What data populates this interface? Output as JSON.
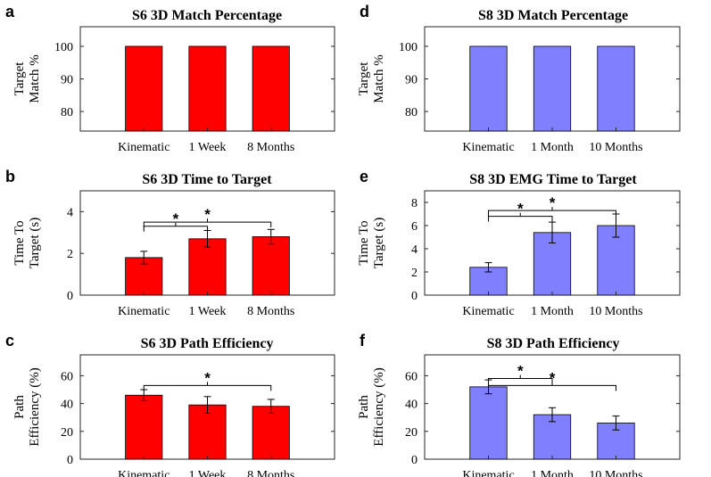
{
  "figure_letters": [
    "a",
    "b",
    "c",
    "d",
    "e",
    "f"
  ],
  "colors": {
    "red_bar": "#ff0000",
    "blue_bar": "#8080ff",
    "axis": "#262626"
  },
  "chart_data": [
    {
      "letter": "a",
      "type": "bar",
      "title": "S6 3D Match Percentage",
      "ylabel": [
        "Target",
        "Match %"
      ],
      "xlabel": "",
      "categories": [
        "Kinematic",
        "1 Week",
        "8 Months"
      ],
      "values": [
        100,
        100,
        100
      ],
      "errors": [
        0,
        0,
        0
      ],
      "ylim": [
        74,
        106
      ],
      "yticks": [
        80,
        90,
        100
      ],
      "color": "#ff0000",
      "significance": []
    },
    {
      "letter": "b",
      "type": "bar",
      "title": "S6 3D Time to Target",
      "ylabel": [
        "Time To",
        "Target (s)"
      ],
      "xlabel": "",
      "categories": [
        "Kinematic",
        "1 Week",
        "8 Months"
      ],
      "values": [
        1.8,
        2.7,
        2.8
      ],
      "errors": [
        0.3,
        0.4,
        0.35
      ],
      "ylim": [
        0,
        5
      ],
      "yticks": [
        0,
        2,
        4
      ],
      "color": "#ff0000",
      "significance": [
        {
          "from": 0,
          "to": 1,
          "level": 3.3,
          "label": "*"
        },
        {
          "from": 0,
          "to": 2,
          "level": 3.5,
          "label": "*"
        }
      ]
    },
    {
      "letter": "c",
      "type": "bar",
      "title": "S6 3D Path Efficiency",
      "ylabel": [
        "Path",
        "Efficiency (%)"
      ],
      "xlabel": "",
      "categories": [
        "Kinematic",
        "1 Week",
        "8 Months"
      ],
      "values": [
        46,
        39,
        38
      ],
      "errors": [
        4,
        6,
        5
      ],
      "ylim": [
        0,
        75
      ],
      "yticks": [
        0,
        20,
        40,
        60
      ],
      "color": "#ff0000",
      "significance": [
        {
          "from": 0,
          "to": 2,
          "level": 53,
          "label": "*"
        }
      ]
    },
    {
      "letter": "d",
      "type": "bar",
      "title": "S8 3D Match Percentage",
      "ylabel": [
        "Target",
        "Match %"
      ],
      "xlabel": "",
      "categories": [
        "Kinematic",
        "1 Month",
        "10 Months"
      ],
      "values": [
        100,
        100,
        100
      ],
      "errors": [
        0,
        0,
        0
      ],
      "ylim": [
        74,
        106
      ],
      "yticks": [
        80,
        90,
        100
      ],
      "color": "#8080ff",
      "significance": []
    },
    {
      "letter": "e",
      "type": "bar",
      "title": "S8 3D EMG Time to Target",
      "ylabel": [
        "Time To",
        "Target (s)"
      ],
      "xlabel": "",
      "categories": [
        "Kinematic",
        "1 Month",
        "10 Months"
      ],
      "values": [
        2.4,
        5.4,
        6.0
      ],
      "errors": [
        0.4,
        0.9,
        1.0
      ],
      "ylim": [
        0,
        9
      ],
      "yticks": [
        0,
        2,
        4,
        6,
        8
      ],
      "color": "#8080ff",
      "significance": [
        {
          "from": 0,
          "to": 1,
          "level": 6.8,
          "label": "*"
        },
        {
          "from": 0,
          "to": 2,
          "level": 7.3,
          "label": "*"
        }
      ]
    },
    {
      "letter": "f",
      "type": "bar",
      "title": "S8 3D Path Efficiency",
      "ylabel": [
        "Path",
        "Efficiency (%)"
      ],
      "xlabel": "",
      "categories": [
        "Kinematic",
        "1 Month",
        "10 Months"
      ],
      "values": [
        52,
        32,
        26
      ],
      "errors": [
        5,
        5,
        5
      ],
      "ylim": [
        0,
        75
      ],
      "yticks": [
        0,
        20,
        40,
        60
      ],
      "color": "#8080ff",
      "significance": [
        {
          "from": 0,
          "to": 1,
          "level": 58,
          "label": "*"
        },
        {
          "from": 0,
          "to": 2,
          "level": 53,
          "label": "*"
        }
      ]
    }
  ]
}
